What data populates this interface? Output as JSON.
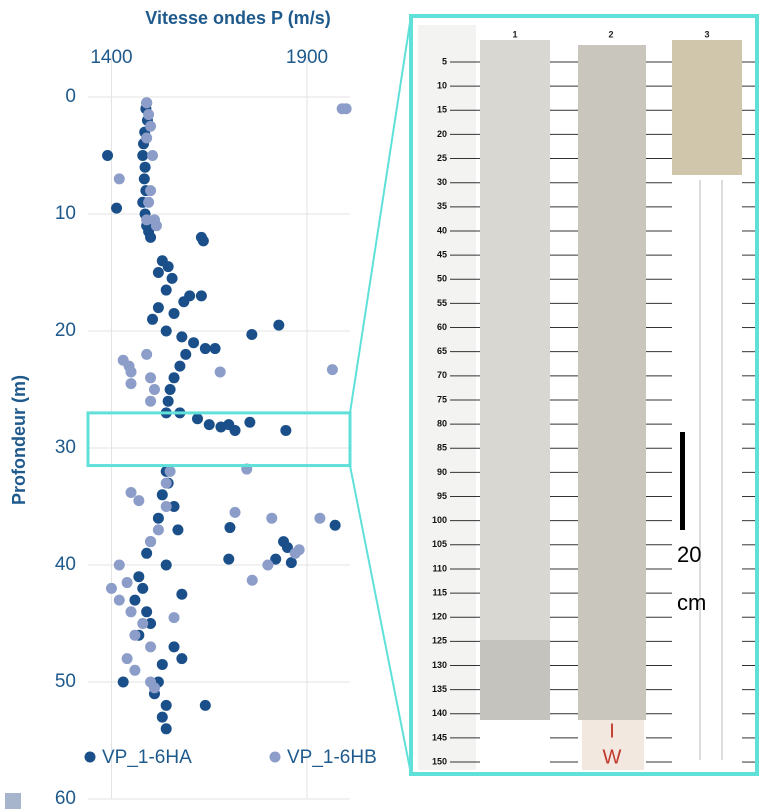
{
  "chart_data": {
    "type": "scatter",
    "x_label": "Vitesse ondes P (m/s)",
    "y_label": "Profondeur (m)",
    "xlim": [
      1340,
      2010
    ],
    "xticks": [
      1400,
      1900
    ],
    "ylim": [
      0,
      60
    ],
    "yticks": [
      0,
      10,
      20,
      30,
      40,
      50,
      60
    ],
    "y_inverted": true,
    "grid": true,
    "legend": "bottom",
    "highlight": [
      27,
      31.5
    ],
    "series": [
      {
        "name": "VP_1-6HA",
        "color": "#1a4f8a",
        "x": [
          1490,
          1488,
          1492,
          1485,
          1482,
          1390,
          1480,
          1486,
          1484,
          1488,
          1480,
          1413,
          1486,
          1490,
          1495,
          1500,
          1630,
          1635,
          1530,
          1545,
          1520,
          1555,
          1540,
          1600,
          1630,
          1585,
          1520,
          1560,
          1505,
          1828,
          1540,
          1759,
          1580,
          1610,
          1640,
          1665,
          1590,
          1575,
          1560,
          1550,
          1545,
          1540,
          1575,
          1620,
          1650,
          1700,
          1680,
          1716,
          1754,
          1846,
          1540,
          1545,
          1530,
          1560,
          1520,
          1703,
          1570,
          1500,
          1840,
          1850,
          1490,
          1700,
          1820,
          1860,
          1972,
          1540,
          1470,
          1480,
          1580,
          1460,
          1490,
          1500,
          1470,
          1560,
          1580,
          1530,
          1430,
          1520,
          1510,
          1640,
          1540,
          1530,
          1540
        ],
        "values": [
          0.5,
          1,
          2,
          3,
          4,
          5,
          5,
          6,
          7,
          8,
          9,
          9.5,
          10,
          11,
          11.5,
          12,
          12,
          12.3,
          14,
          14.5,
          15,
          15.5,
          16.5,
          17,
          17,
          17.5,
          18,
          18.5,
          19,
          19.5,
          20,
          20.3,
          20.5,
          21,
          21.5,
          21.5,
          22,
          23,
          24,
          25,
          26,
          27,
          27,
          27.5,
          28,
          28,
          28.2,
          28.5,
          27.8,
          28.5,
          32,
          33,
          34,
          35,
          36,
          36.8,
          37,
          38,
          38,
          38.5,
          39,
          39.5,
          39.5,
          39.8,
          36.6,
          40,
          41,
          42,
          42.5,
          43,
          44,
          45,
          46,
          47,
          48,
          48.5,
          50,
          50,
          51,
          52,
          52,
          53,
          54
        ]
      },
      {
        "name": "VP_1-6HB",
        "color": "#8b9dc8",
        "x": [
          1490,
          1990,
          2000,
          1495,
          1500,
          1490,
          1505,
          1420,
          1500,
          1495,
          1490,
          1510,
          1515,
          1430,
          1445,
          1450,
          1450,
          1678,
          1965,
          1490,
          1500,
          1510,
          1500,
          1746,
          1550,
          1540,
          1450,
          1470,
          1540,
          1716,
          1810,
          1933,
          1520,
          1500,
          1880,
          1870,
          1800,
          1760,
          1420,
          1440,
          1400,
          1420,
          1450,
          1480,
          1460,
          1500,
          1440,
          1460,
          1500,
          1510,
          1560
        ],
        "values": [
          0.5,
          1,
          1,
          1.5,
          2.5,
          3.5,
          5,
          7,
          8,
          9,
          10.5,
          10.5,
          11,
          22.5,
          23,
          23.5,
          24.5,
          23.5,
          23.3,
          22,
          24,
          25,
          26,
          31.8,
          32,
          33,
          33.8,
          34.5,
          35,
          35.5,
          36,
          36,
          37,
          38,
          38.7,
          39,
          40,
          41.3,
          40,
          41.5,
          42,
          43,
          44,
          45,
          46,
          47,
          48,
          49,
          50,
          50.5,
          44.5
        ]
      }
    ]
  },
  "photo": {
    "core_labels": [
      "1",
      "2",
      "3"
    ],
    "scale_marks": [
      5,
      10,
      15,
      20,
      25,
      30,
      35,
      40,
      45,
      50,
      55,
      60,
      65,
      70,
      75,
      80,
      85,
      90,
      95,
      100,
      105,
      110,
      115,
      120,
      125,
      130,
      135,
      140,
      145,
      150
    ],
    "scale_bar": [
      "20",
      "cm"
    ],
    "sample_label": [
      "I",
      "W"
    ]
  }
}
